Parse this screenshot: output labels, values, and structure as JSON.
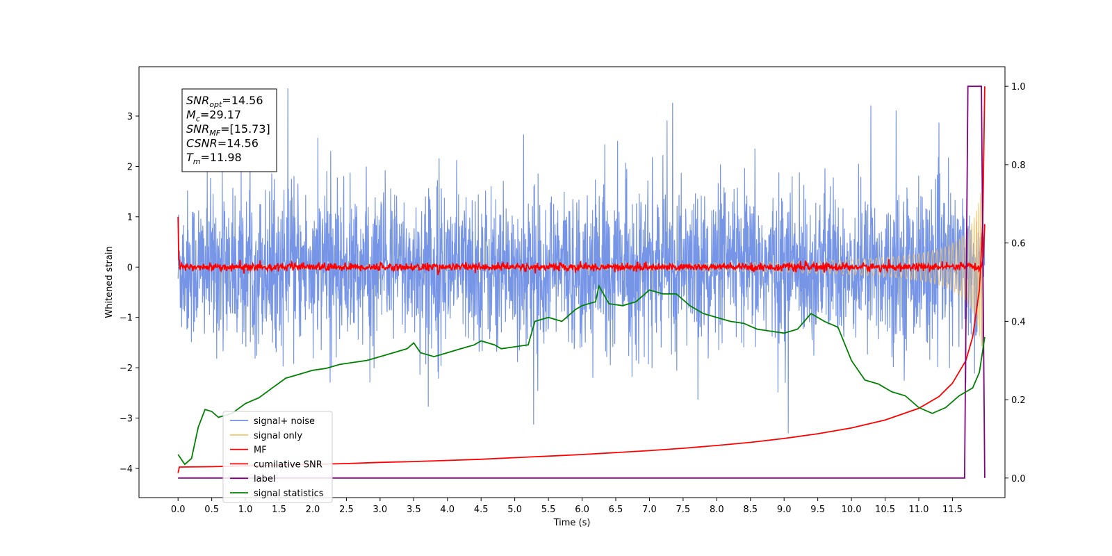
{
  "chart_data": {
    "type": "line",
    "title": "",
    "xlabel": "Time (s)",
    "ylabel": "Whitened strain",
    "y2label": "",
    "xlim": [
      -0.58,
      12.28
    ],
    "ylim": [
      -4.58,
      3.98
    ],
    "y2lim": [
      -0.05,
      1.05
    ],
    "x_ticks": [
      0.0,
      0.5,
      1.0,
      1.5,
      2.0,
      2.5,
      3.0,
      3.5,
      4.0,
      4.5,
      5.0,
      5.5,
      6.0,
      6.5,
      7.0,
      7.5,
      8.0,
      8.5,
      9.0,
      9.5,
      10.0,
      10.5,
      11.0,
      11.5
    ],
    "x_tick_labels": [
      "0.0",
      "0.5",
      "1.0",
      "1.5",
      "2.0",
      "2.5",
      "3.0",
      "3.5",
      "4.0",
      "4.5",
      "5.0",
      "5.5",
      "6.0",
      "6.5",
      "7.0",
      "7.5",
      "8.0",
      "8.5",
      "9.0",
      "9.5",
      "10.0",
      "10.5",
      "11.0",
      "11.5"
    ],
    "y_ticks": [
      3,
      2,
      1,
      0,
      -1,
      -2,
      -3,
      -4
    ],
    "y_tick_labels": [
      "3",
      "2",
      "1",
      "0",
      "−1",
      "−2",
      "−3",
      "−4"
    ],
    "y2_ticks": [
      1.0,
      0.8,
      0.6,
      0.4,
      0.2,
      0.0
    ],
    "y2_tick_labels": [
      "1.0",
      "0.8",
      "0.6",
      "0.4",
      "0.2",
      "0.0"
    ],
    "grid": false,
    "legend_position": "lower-left",
    "annotation": {
      "lines": [
        {
          "main": "SNR",
          "sub": "opt",
          "value": "=14.56"
        },
        {
          "main": "M",
          "sub": "c",
          "value": "=29.17"
        },
        {
          "main": "SNR",
          "sub": "MF",
          "value": "=[15.73]"
        },
        {
          "main": "CSNR",
          "sub": "",
          "value": "=14.56"
        },
        {
          "main": "T",
          "sub": "m",
          "value": "=11.98"
        }
      ]
    },
    "series": [
      {
        "name": "signal+ noise",
        "color": "#6f8fe6",
        "axis": "left",
        "kind": "noise",
        "x_range": [
          0.0,
          11.98
        ],
        "amplitude_std": 0.75
      },
      {
        "name": "signal only",
        "color": "#f5c46b",
        "axis": "left",
        "kind": "chirp",
        "x_range": [
          0.0,
          11.98
        ],
        "amplitude_end": 2.3
      },
      {
        "name": "MF",
        "color": "#ff0000",
        "axis": "left",
        "kind": "mf",
        "x_range": [
          0.0,
          11.98
        ],
        "start_value": 1.0,
        "amplitude_std": 0.04,
        "end_value": 0.85
      },
      {
        "name": "cumilative SNR",
        "color": "#ff0000",
        "axis": "right",
        "x": [
          0.0,
          0.02,
          0.5,
          1.0,
          1.5,
          2.0,
          2.5,
          3.0,
          3.5,
          4.0,
          4.5,
          5.0,
          5.5,
          6.0,
          6.5,
          7.0,
          7.5,
          8.0,
          8.5,
          9.0,
          9.5,
          10.0,
          10.5,
          11.0,
          11.3,
          11.5,
          11.7,
          11.8,
          11.9,
          11.95,
          11.98
        ],
        "y": [
          0.013,
          0.028,
          0.029,
          0.031,
          0.033,
          0.035,
          0.037,
          0.04,
          0.042,
          0.045,
          0.048,
          0.052,
          0.056,
          0.06,
          0.065,
          0.07,
          0.076,
          0.083,
          0.091,
          0.101,
          0.113,
          0.128,
          0.148,
          0.178,
          0.208,
          0.242,
          0.3,
          0.36,
          0.48,
          0.65,
          1.0
        ]
      },
      {
        "name": "label",
        "color": "#800080",
        "axis": "right",
        "x": [
          0.0,
          11.68,
          11.73,
          11.93,
          11.98
        ],
        "y": [
          0.0,
          0.0,
          1.0,
          1.0,
          0.0
        ]
      },
      {
        "name": "signal statistics",
        "color": "#008000",
        "axis": "right",
        "x": [
          0.0,
          0.1,
          0.2,
          0.3,
          0.4,
          0.5,
          0.6,
          0.8,
          1.0,
          1.2,
          1.4,
          1.6,
          1.8,
          2.0,
          2.2,
          2.4,
          2.6,
          2.8,
          3.0,
          3.2,
          3.4,
          3.5,
          3.6,
          3.8,
          4.0,
          4.2,
          4.4,
          4.5,
          4.7,
          4.8,
          5.0,
          5.2,
          5.3,
          5.5,
          5.7,
          5.9,
          6.0,
          6.2,
          6.25,
          6.4,
          6.6,
          6.8,
          7.0,
          7.2,
          7.4,
          7.6,
          7.8,
          8.0,
          8.2,
          8.4,
          8.6,
          8.8,
          9.0,
          9.2,
          9.4,
          9.6,
          9.8,
          10.0,
          10.2,
          10.4,
          10.6,
          10.8,
          11.0,
          11.2,
          11.4,
          11.6,
          11.8,
          11.9,
          11.98
        ],
        "y": [
          0.06,
          0.035,
          0.05,
          0.13,
          0.175,
          0.17,
          0.155,
          0.165,
          0.19,
          0.205,
          0.23,
          0.255,
          0.265,
          0.275,
          0.28,
          0.29,
          0.295,
          0.3,
          0.31,
          0.32,
          0.33,
          0.345,
          0.32,
          0.31,
          0.32,
          0.33,
          0.34,
          0.35,
          0.34,
          0.33,
          0.335,
          0.34,
          0.4,
          0.41,
          0.4,
          0.43,
          0.44,
          0.45,
          0.49,
          0.445,
          0.44,
          0.45,
          0.48,
          0.47,
          0.47,
          0.44,
          0.42,
          0.41,
          0.4,
          0.395,
          0.38,
          0.375,
          0.37,
          0.38,
          0.42,
          0.4,
          0.385,
          0.3,
          0.25,
          0.24,
          0.22,
          0.21,
          0.18,
          0.165,
          0.18,
          0.21,
          0.23,
          0.27,
          0.36
        ]
      }
    ]
  }
}
